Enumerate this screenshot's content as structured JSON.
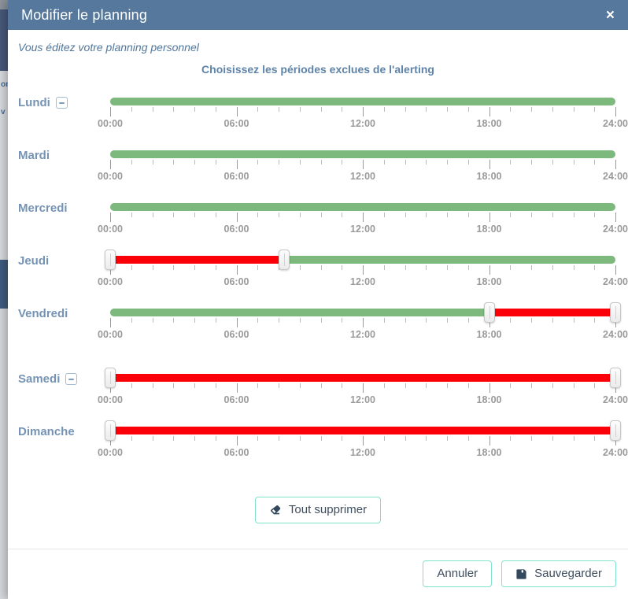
{
  "header": {
    "title": "Modifier le planning",
    "close": "×"
  },
  "intro_text": "Vous éditez votre planning personnel",
  "section_title": "Choisissez les périodes exclues de l'alerting",
  "time_axis": {
    "hours_total": 24,
    "tick_every_hours": 1,
    "major_every_hours": 6,
    "label_hours": [
      0,
      6,
      12,
      18,
      24
    ],
    "labels": [
      "00:00",
      "06:00",
      "12:00",
      "18:00",
      "24:00"
    ]
  },
  "days": [
    {
      "label": "Lundi",
      "has_remove_button": true,
      "excluded_periods": [],
      "extra_space_before": false
    },
    {
      "label": "Mardi",
      "has_remove_button": false,
      "excluded_periods": [],
      "extra_space_before": false
    },
    {
      "label": "Mercredi",
      "has_remove_button": false,
      "excluded_periods": [],
      "extra_space_before": false
    },
    {
      "label": "Jeudi",
      "has_remove_button": false,
      "excluded_periods": [
        {
          "from_hour": 0,
          "to_hour": 8.25,
          "from_label": "00:00",
          "to_label": "08:15"
        }
      ],
      "extra_space_before": false
    },
    {
      "label": "Vendredi",
      "has_remove_button": false,
      "excluded_periods": [
        {
          "from_hour": 18,
          "to_hour": 24,
          "from_label": "18:00",
          "to_label": "24:00"
        }
      ],
      "extra_space_before": false
    },
    {
      "label": "Samedi",
      "has_remove_button": true,
      "excluded_periods": [
        {
          "from_hour": 0,
          "to_hour": 24,
          "from_label": "00:00",
          "to_label": "24:00"
        }
      ],
      "extra_space_before": true
    },
    {
      "label": "Dimanche",
      "has_remove_button": false,
      "excluded_periods": [
        {
          "from_hour": 0,
          "to_hour": 24,
          "from_label": "00:00",
          "to_label": "24:00"
        }
      ],
      "extra_space_before": false
    }
  ],
  "actions": {
    "clear_all": "Tout supprimer",
    "cancel": "Annuler",
    "save": "Sauvegarder"
  },
  "backdrop_fragments": [
    "on",
    "v"
  ],
  "colors": {
    "header_bg": "#55789c",
    "included_green": "#7db87d",
    "excluded_red": "#fb0008",
    "day_label_blue": "#7593b5",
    "button_border_teal": "#80e3cb",
    "button_text": "#3f4e5e"
  }
}
